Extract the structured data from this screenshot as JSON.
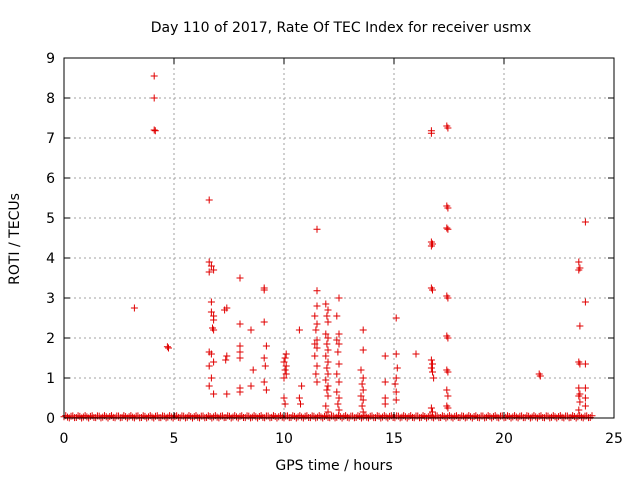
{
  "chart_data": {
    "type": "scatter",
    "title": "Day 110 of 2017, Rate Of TEC Index for receiver usmx",
    "xlabel": "GPS time / hours",
    "ylabel": "ROTI / TECUs",
    "xlim": [
      0,
      25
    ],
    "ylim": [
      0,
      9
    ],
    "xticks": [
      0,
      5,
      10,
      15,
      20,
      25
    ],
    "yticks": [
      0,
      1,
      2,
      3,
      4,
      5,
      6,
      7,
      8,
      9
    ],
    "grid": true,
    "marker": "+",
    "color": "#e00000",
    "series": [
      {
        "name": "ROTI",
        "points": [
          [
            3.2,
            2.75
          ],
          [
            4.1,
            8.55
          ],
          [
            4.1,
            8.0
          ],
          [
            4.1,
            7.2
          ],
          [
            4.15,
            7.18
          ],
          [
            4.7,
            1.78
          ],
          [
            4.75,
            1.75
          ],
          [
            6.6,
            5.45
          ],
          [
            6.6,
            3.9
          ],
          [
            6.7,
            3.8
          ],
          [
            6.6,
            3.65
          ],
          [
            6.8,
            3.7
          ],
          [
            6.7,
            2.9
          ],
          [
            6.7,
            2.65
          ],
          [
            6.8,
            2.55
          ],
          [
            6.8,
            2.45
          ],
          [
            6.75,
            2.25
          ],
          [
            6.8,
            2.2
          ],
          [
            6.6,
            1.65
          ],
          [
            6.7,
            1.6
          ],
          [
            6.8,
            1.4
          ],
          [
            6.6,
            1.3
          ],
          [
            6.7,
            1.0
          ],
          [
            6.6,
            0.8
          ],
          [
            6.8,
            0.6
          ],
          [
            7.4,
            2.75
          ],
          [
            7.3,
            2.7
          ],
          [
            7.4,
            1.55
          ],
          [
            7.35,
            1.45
          ],
          [
            7.4,
            0.6
          ],
          [
            8.0,
            3.5
          ],
          [
            8.0,
            2.35
          ],
          [
            8.0,
            1.8
          ],
          [
            8.0,
            1.65
          ],
          [
            8.0,
            1.5
          ],
          [
            8.0,
            0.75
          ],
          [
            8.0,
            0.65
          ],
          [
            8.5,
            2.2
          ],
          [
            8.6,
            1.2
          ],
          [
            8.5,
            0.8
          ],
          [
            9.1,
            3.25
          ],
          [
            9.1,
            3.2
          ],
          [
            9.1,
            2.4
          ],
          [
            9.2,
            1.8
          ],
          [
            9.1,
            1.5
          ],
          [
            9.15,
            1.3
          ],
          [
            9.1,
            0.9
          ],
          [
            9.2,
            0.7
          ],
          [
            10.1,
            1.6
          ],
          [
            10.05,
            1.5
          ],
          [
            10.0,
            1.4
          ],
          [
            10.1,
            1.3
          ],
          [
            10.05,
            1.2
          ],
          [
            10.1,
            1.1
          ],
          [
            10.0,
            1.0
          ],
          [
            10.0,
            0.5
          ],
          [
            10.05,
            0.35
          ],
          [
            10.7,
            2.2
          ],
          [
            10.8,
            0.8
          ],
          [
            10.7,
            0.5
          ],
          [
            10.75,
            0.35
          ],
          [
            11.5,
            4.72
          ],
          [
            11.5,
            3.18
          ],
          [
            11.5,
            2.8
          ],
          [
            11.4,
            2.55
          ],
          [
            11.5,
            2.35
          ],
          [
            11.45,
            2.2
          ],
          [
            11.5,
            1.95
          ],
          [
            11.4,
            1.85
          ],
          [
            11.5,
            1.75
          ],
          [
            11.4,
            1.55
          ],
          [
            11.5,
            1.3
          ],
          [
            11.45,
            1.1
          ],
          [
            11.5,
            0.9
          ],
          [
            11.9,
            2.85
          ],
          [
            12.0,
            2.7
          ],
          [
            11.95,
            2.55
          ],
          [
            12.0,
            2.4
          ],
          [
            11.9,
            2.1
          ],
          [
            12.0,
            2.0
          ],
          [
            11.95,
            1.85
          ],
          [
            12.0,
            1.7
          ],
          [
            11.9,
            1.55
          ],
          [
            12.0,
            1.4
          ],
          [
            11.95,
            1.25
          ],
          [
            12.0,
            1.1
          ],
          [
            11.9,
            0.95
          ],
          [
            12.0,
            0.8
          ],
          [
            11.95,
            0.7
          ],
          [
            12.0,
            0.55
          ],
          [
            11.9,
            0.3
          ],
          [
            12.0,
            0.15
          ],
          [
            12.5,
            3.0
          ],
          [
            12.4,
            2.55
          ],
          [
            12.5,
            2.1
          ],
          [
            12.4,
            1.95
          ],
          [
            12.5,
            1.85
          ],
          [
            12.45,
            1.65
          ],
          [
            12.5,
            1.35
          ],
          [
            12.4,
            1.1
          ],
          [
            12.5,
            0.9
          ],
          [
            12.4,
            0.65
          ],
          [
            12.5,
            0.5
          ],
          [
            12.45,
            0.35
          ],
          [
            12.5,
            0.2
          ],
          [
            13.6,
            2.2
          ],
          [
            13.6,
            1.7
          ],
          [
            13.5,
            1.2
          ],
          [
            13.6,
            1.0
          ],
          [
            13.55,
            0.85
          ],
          [
            13.6,
            0.7
          ],
          [
            13.5,
            0.55
          ],
          [
            13.6,
            0.45
          ],
          [
            13.55,
            0.3
          ],
          [
            13.6,
            0.15
          ],
          [
            14.6,
            1.55
          ],
          [
            14.6,
            0.9
          ],
          [
            14.6,
            0.5
          ],
          [
            14.6,
            0.35
          ],
          [
            15.1,
            2.5
          ],
          [
            15.1,
            1.6
          ],
          [
            15.15,
            1.25
          ],
          [
            15.1,
            1.0
          ],
          [
            15.05,
            0.85
          ],
          [
            15.1,
            0.65
          ],
          [
            15.1,
            0.45
          ],
          [
            16.0,
            1.6
          ],
          [
            16.7,
            7.18
          ],
          [
            16.7,
            7.12
          ],
          [
            16.7,
            4.4
          ],
          [
            16.75,
            4.35
          ],
          [
            16.7,
            4.3
          ],
          [
            16.7,
            3.25
          ],
          [
            16.75,
            3.2
          ],
          [
            16.7,
            1.45
          ],
          [
            16.75,
            1.35
          ],
          [
            16.7,
            1.25
          ],
          [
            16.75,
            1.15
          ],
          [
            16.8,
            1.0
          ],
          [
            16.7,
            0.25
          ],
          [
            16.75,
            0.15
          ],
          [
            17.4,
            7.3
          ],
          [
            17.45,
            7.25
          ],
          [
            17.4,
            5.3
          ],
          [
            17.45,
            5.25
          ],
          [
            17.4,
            4.75
          ],
          [
            17.45,
            4.72
          ],
          [
            17.4,
            3.05
          ],
          [
            17.45,
            3.0
          ],
          [
            17.4,
            2.05
          ],
          [
            17.45,
            2.0
          ],
          [
            17.4,
            1.2
          ],
          [
            17.45,
            1.15
          ],
          [
            17.4,
            0.7
          ],
          [
            17.45,
            0.55
          ],
          [
            17.4,
            0.3
          ],
          [
            17.45,
            0.25
          ],
          [
            21.6,
            1.1
          ],
          [
            21.65,
            1.05
          ],
          [
            23.4,
            3.9
          ],
          [
            23.45,
            3.75
          ],
          [
            23.4,
            3.7
          ],
          [
            23.45,
            2.3
          ],
          [
            23.4,
            1.4
          ],
          [
            23.45,
            1.35
          ],
          [
            23.4,
            0.75
          ],
          [
            23.45,
            0.6
          ],
          [
            23.4,
            0.55
          ],
          [
            23.45,
            0.4
          ],
          [
            23.4,
            0.2
          ],
          [
            23.7,
            4.9
          ],
          [
            23.7,
            2.9
          ],
          [
            23.7,
            1.35
          ],
          [
            23.7,
            0.75
          ],
          [
            23.7,
            0.5
          ],
          [
            23.7,
            0.3
          ]
        ],
        "baseline": {
          "description_range_hours": [
            0,
            24
          ],
          "step_hours": 0.08,
          "max_value": 0.06
        }
      }
    ]
  }
}
